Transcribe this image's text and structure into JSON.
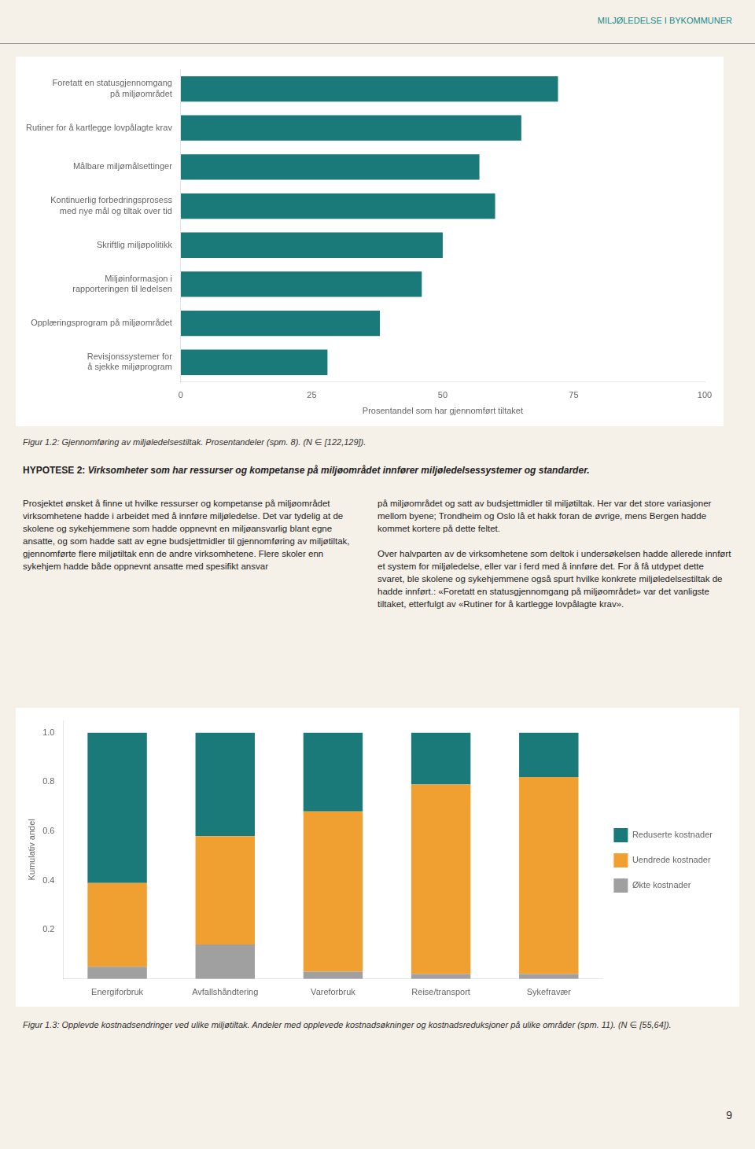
{
  "annotations": [
    "MILJØLEDELSE I BYKOMMUNER",
    "HYPOTESE 2: ",
    "Virksomheter som har ressurser og kompetanse på miljøområdet innfører miljøledelsessystemer og standarder.",
    "Prosjektet ønsket å finne ut hvilke ressurser og kompetanse på miljøområdet virksomhetene hadde i arbeidet med å innføre miljøledelse. Det var tydelig at de skolene og sykehjemmene som hadde oppnevnt en miljøansvarlig blant egne ansatte, og som hadde satt av egne budsjettmidler til gjennomføring av miljøtiltak, gjennomførte flere miljøtiltak enn de andre virksomhetene. Flere skoler enn sykehjem hadde både oppnevnt ansatte med spesifikt ansvar",
    "på miljøområdet og satt av budsjettmidler til miljøtiltak. Her var det store variasjoner mellom byene; Trondheim og Oslo lå et hakk foran de øvrige, mens Bergen hadde kommet kortere på dette feltet.\n\nOver halvparten av de virksomhetene som deltok i undersøkelsen hadde allerede innført et system for miljøledelse, eller var i ferd med å innføre det. For å få utdypet dette svaret, ble skolene og sykehjemmene også spurt hvilke konkrete miljøledelsestiltak de hadde innført.: «Foretatt en statusgjennomgang på miljøområdet» var det vanligste tiltaket, etterfulgt av «Rutiner for å kartlegge lovpålagte krav».",
    "9"
  ],
  "chart_data": [
    {
      "type": "bar",
      "orientation": "horizontal",
      "categories": [
        "Foretatt en statusgjennomgang\npå miljøområdet",
        "Rutiner for å kartlegge lovpålagte krav",
        "Målbare miljømålsettinger",
        "Kontinuerlig forbedringsprosess\nmed nye mål og tiltak over tid",
        "Skriftlig miljøpolitikk",
        "Miljøinformasjon i\nrapporteringen til ledelsen",
        "Opplæringsprogram på miljøområdet",
        "Revisjonssystemer for\nå sjekke miljøprogram"
      ],
      "values": [
        72,
        65,
        57,
        60,
        50,
        46,
        38,
        28
      ],
      "color": "#1a7a7a",
      "xlabel": "Prosentandel som har gjennomført tiltaket",
      "xlim": [
        0,
        100
      ],
      "xticks": [
        0,
        25,
        50,
        75,
        100
      ],
      "grid": false,
      "annotations": [
        "Figur 1.2: Gjennomføring av miljøledelsestiltak. Prosentandeler (spm. 8). (N ∈ [122,129])."
      ]
    },
    {
      "type": "bar",
      "stacked": true,
      "categories": [
        "Energiforbruk",
        "Avfallshåndtering",
        "Vareforbruk",
        "Reise/transport",
        "Sykefravær"
      ],
      "series": [
        {
          "name": "Økte kostnader",
          "color": "#a0a0a0",
          "values": [
            0.05,
            0.14,
            0.03,
            0.02,
            0.02
          ]
        },
        {
          "name": "Uendrede kostnader",
          "color": "#f0a030",
          "values": [
            0.34,
            0.44,
            0.65,
            0.77,
            0.8
          ]
        },
        {
          "name": "Reduserte kostnader",
          "color": "#1a7a7a",
          "values": [
            0.61,
            0.42,
            0.32,
            0.21,
            0.18
          ]
        }
      ],
      "ylabel": "Kumulativ andel",
      "ylim": [
        0,
        1.05
      ],
      "yticks": [
        0.2,
        0.4,
        0.6,
        0.8,
        {
          "value": 1.0,
          "label": "1.0"
        }
      ],
      "grid": false,
      "legend": "right",
      "annotations": [
        "Figur 1.3: Opplevde kostnadsendringer ved ulike miljøtiltak. Andeler med opplevede kostnadsøkninger og kostnadsreduksjoner på ulike områder (spm. 11). (N ∈ [55,64])."
      ]
    }
  ]
}
